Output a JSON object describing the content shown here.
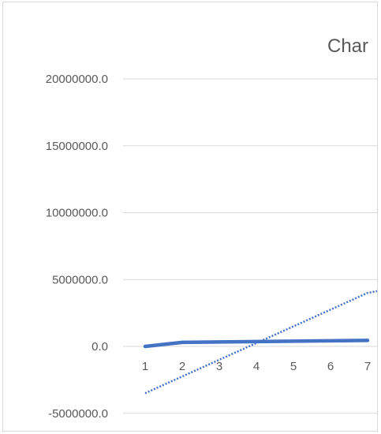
{
  "chart_data": {
    "type": "line",
    "title": "Char",
    "xlabel": "",
    "ylabel": "",
    "categories": [
      "1",
      "2",
      "3",
      "4",
      "5",
      "6",
      "7"
    ],
    "y_ticks": [
      "20000000.0",
      "15000000.0",
      "10000000.0",
      "5000000.0",
      "0.0",
      "-5000000.0"
    ],
    "ylim": [
      -5000000,
      20000000
    ],
    "grid": true,
    "legend": "none",
    "series": [
      {
        "style": "solid",
        "color": "#4472c4",
        "values": [
          0,
          300000,
          330000,
          360000,
          390000,
          420000,
          450000
        ]
      },
      {
        "style": "dotted-trendline",
        "color": "#4472c4",
        "values": [
          -3500000,
          -2250000,
          -1000000,
          250000,
          1500000,
          2750000,
          4000000
        ],
        "x_end": 7.6,
        "y_end": 4300000
      }
    ]
  },
  "colors": {
    "series": "#4472c4",
    "grid": "#d9d9d9",
    "text": "#595959"
  }
}
